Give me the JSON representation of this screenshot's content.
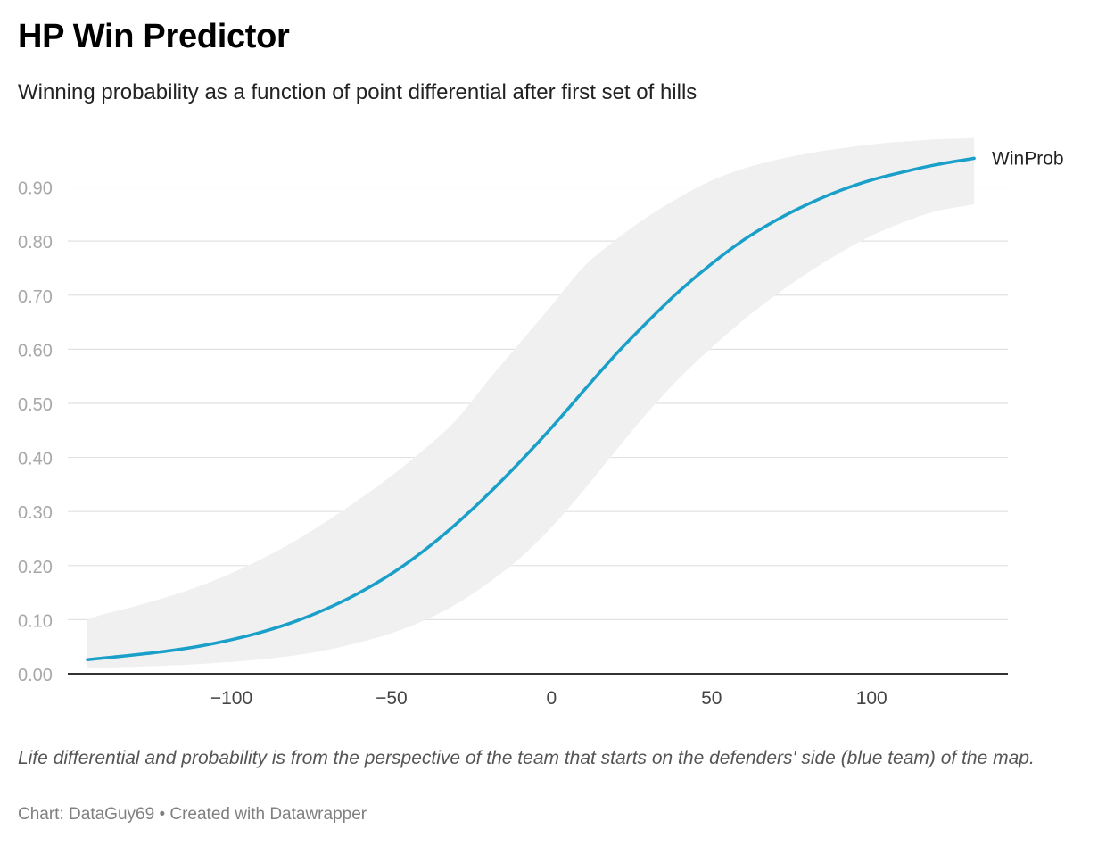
{
  "header": {
    "title": "HP Win Predictor",
    "subtitle": "Winning probability as a function of point differential after first set of hills"
  },
  "footer": {
    "notes": "Life differential and probability is from the perspective of the team that starts on the defenders' side (blue team) of the map.",
    "source_label": "Chart:",
    "source_name": "DataGuy69",
    "separator": "•",
    "credit": "Created with Datawrapper"
  },
  "chart_data": {
    "type": "line",
    "title": "HP Win Predictor",
    "subtitle": "Winning probability as a function of point differential after first set of hills",
    "xlabel": "",
    "ylabel": "",
    "xlim": [
      -145,
      137
    ],
    "ylim": [
      0,
      0.99
    ],
    "x_ticks": [
      -100,
      -50,
      0,
      50,
      100
    ],
    "x_tick_labels": [
      "−100",
      "−50",
      "0",
      "50",
      "100"
    ],
    "y_ticks": [
      0,
      0.1,
      0.2,
      0.3,
      0.4,
      0.5,
      0.6,
      0.7,
      0.8,
      0.9
    ],
    "y_tick_labels": [
      "0.00",
      "0.10",
      "0.20",
      "0.30",
      "0.40",
      "0.50",
      "0.60",
      "0.70",
      "0.80",
      "0.90"
    ],
    "grid": "horizontal",
    "legend": "direct label at line end",
    "colors": {
      "line": "#1a9fc9",
      "band": "#f0f0f0",
      "grid": "#e2e2e2",
      "axis": "#333333",
      "tick_text": "#a8a8a8"
    },
    "series": [
      {
        "name": "WinProb",
        "x": [
          -145,
          -140,
          -130,
          -120,
          -110,
          -100,
          -90,
          -80,
          -70,
          -60,
          -50,
          -40,
          -30,
          -20,
          -10,
          0,
          10,
          20,
          30,
          40,
          50,
          60,
          70,
          80,
          90,
          100,
          110,
          120,
          130,
          132
        ],
        "y": [
          0.026,
          0.029,
          0.035,
          0.042,
          0.051,
          0.063,
          0.078,
          0.097,
          0.121,
          0.15,
          0.185,
          0.227,
          0.276,
          0.331,
          0.391,
          0.455,
          0.523,
          0.59,
          0.651,
          0.708,
          0.758,
          0.802,
          0.838,
          0.868,
          0.893,
          0.913,
          0.928,
          0.941,
          0.951,
          0.953
        ]
      }
    ],
    "band": {
      "x": [
        -145,
        -140,
        -130,
        -120,
        -110,
        -100,
        -90,
        -80,
        -70,
        -60,
        -50,
        -40,
        -30,
        -20,
        -10,
        0,
        10,
        20,
        30,
        40,
        50,
        60,
        70,
        80,
        90,
        100,
        110,
        120,
        130,
        132
      ],
      "upper": [
        0.1,
        0.11,
        0.125,
        0.142,
        0.162,
        0.186,
        0.214,
        0.246,
        0.283,
        0.323,
        0.366,
        0.414,
        0.468,
        0.541,
        0.611,
        0.681,
        0.752,
        0.802,
        0.845,
        0.881,
        0.912,
        0.934,
        0.95,
        0.962,
        0.971,
        0.979,
        0.984,
        0.988,
        0.99,
        0.991
      ],
      "lower": [
        0.01,
        0.011,
        0.013,
        0.015,
        0.018,
        0.022,
        0.027,
        0.034,
        0.044,
        0.058,
        0.075,
        0.098,
        0.128,
        0.167,
        0.213,
        0.271,
        0.339,
        0.412,
        0.483,
        0.547,
        0.603,
        0.654,
        0.7,
        0.741,
        0.778,
        0.81,
        0.835,
        0.855,
        0.866,
        0.868
      ]
    },
    "notes": "Life differential and probability is from the perspective of the team that starts on the defenders' side (blue team) of the map."
  }
}
